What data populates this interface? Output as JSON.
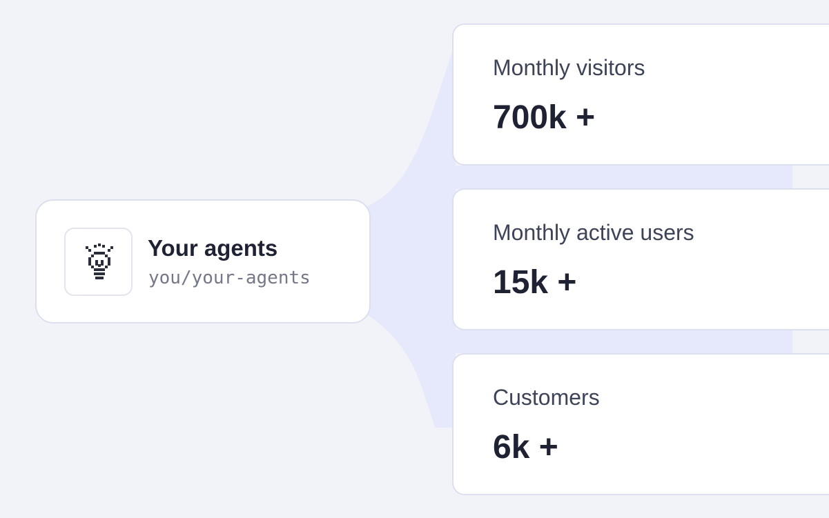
{
  "colors": {
    "background": "#f2f3f8",
    "card": "#ffffff",
    "card_border": "#dcdfee",
    "connector": "#e6e9fb",
    "title_text": "#1e2233",
    "label_text": "#3e4458",
    "mono_text": "#737787"
  },
  "agent": {
    "icon": "lightbulb-icon",
    "title": "Your agents",
    "handle": "you/your-agents"
  },
  "stats": [
    {
      "label": "Monthly visitors",
      "value": "700k +"
    },
    {
      "label": "Monthly active users",
      "value": "15k +"
    },
    {
      "label": "Customers",
      "value": "6k +"
    }
  ]
}
